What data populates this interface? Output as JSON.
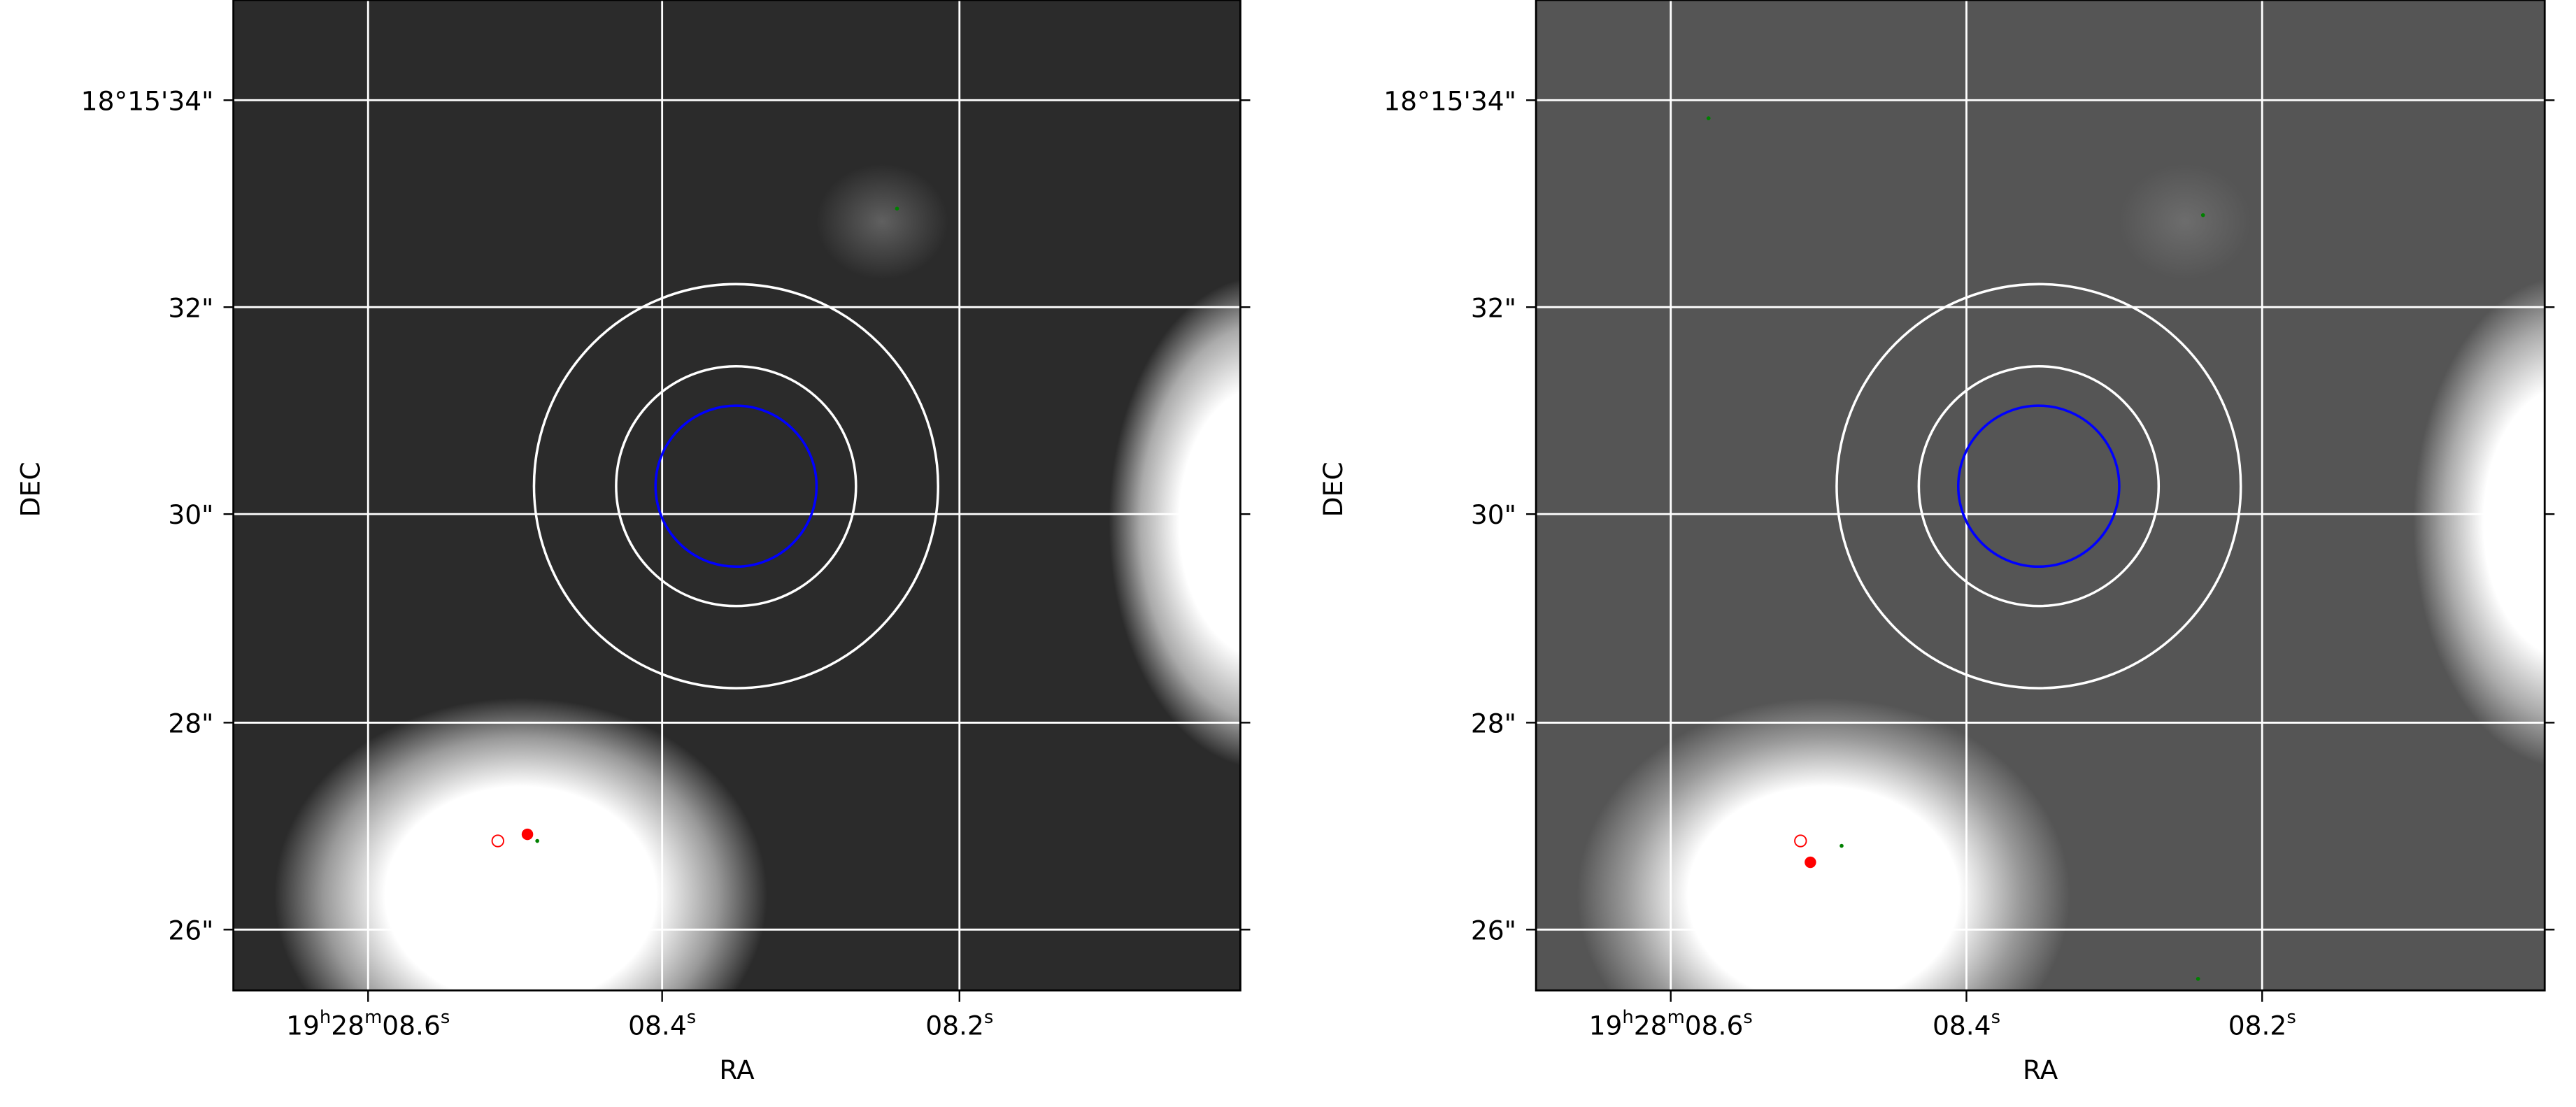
{
  "chart_data": [
    {
      "type": "heatmap",
      "colormap": "grayscale",
      "xlabel": "RA",
      "ylabel": "DEC",
      "x_ticks": [
        "19h28m08.6s",
        "08.4s",
        "08.2s"
      ],
      "y_ticks": [
        "18°15'34\"",
        "32\"",
        "30\"",
        "28\"",
        "26\""
      ],
      "grid": true,
      "grid_color": "#ffffff",
      "apertures": [
        {
          "kind": "annulus-outer",
          "color": "#ffffff"
        },
        {
          "kind": "annulus-inner",
          "color": "#ffffff"
        },
        {
          "kind": "aperture",
          "color": "#0000ff"
        }
      ],
      "markers": [
        {
          "kind": "filled-dot",
          "color": "#ff0000"
        },
        {
          "kind": "open-circle",
          "color": "#ff0000"
        },
        {
          "kind": "dot",
          "color": "#008000"
        }
      ]
    },
    {
      "type": "heatmap",
      "colormap": "grayscale",
      "xlabel": "RA",
      "ylabel": "DEC",
      "x_ticks": [
        "19h28m08.6s",
        "08.4s",
        "08.2s"
      ],
      "y_ticks": [
        "18°15'34\"",
        "32\"",
        "30\"",
        "28\"",
        "26\""
      ],
      "grid": true,
      "grid_color": "#ffffff",
      "apertures": [
        {
          "kind": "annulus-outer",
          "color": "#ffffff"
        },
        {
          "kind": "annulus-inner",
          "color": "#ffffff"
        },
        {
          "kind": "aperture",
          "color": "#0000ff"
        }
      ],
      "markers": [
        {
          "kind": "filled-dot",
          "color": "#ff0000"
        },
        {
          "kind": "open-circle",
          "color": "#ff0000"
        },
        {
          "kind": "dot",
          "color": "#008000"
        }
      ]
    }
  ],
  "panels": [
    {
      "xlabel": "RA",
      "ylabel": "DEC",
      "xticks": [
        {
          "main": "19",
          "h": "h",
          "m1": "28",
          "m": "m",
          "s1": "08.6",
          "s": "s"
        },
        {
          "s1": "08.4",
          "s": "s"
        },
        {
          "s1": "08.2",
          "s": "s"
        }
      ],
      "yticks": [
        "18°15'34\"",
        "32\"",
        "30\"",
        "28\"",
        "26\""
      ]
    },
    {
      "xlabel": "RA",
      "ylabel": "DEC",
      "xticks": [
        {
          "main": "19",
          "h": "h",
          "m1": "28",
          "m": "m",
          "s1": "08.6",
          "s": "s"
        },
        {
          "s1": "08.4",
          "s": "s"
        },
        {
          "s1": "08.2",
          "s": "s"
        }
      ],
      "yticks": [
        "18°15'34\"",
        "32\"",
        "30\"",
        "28\"",
        "26\""
      ]
    }
  ]
}
